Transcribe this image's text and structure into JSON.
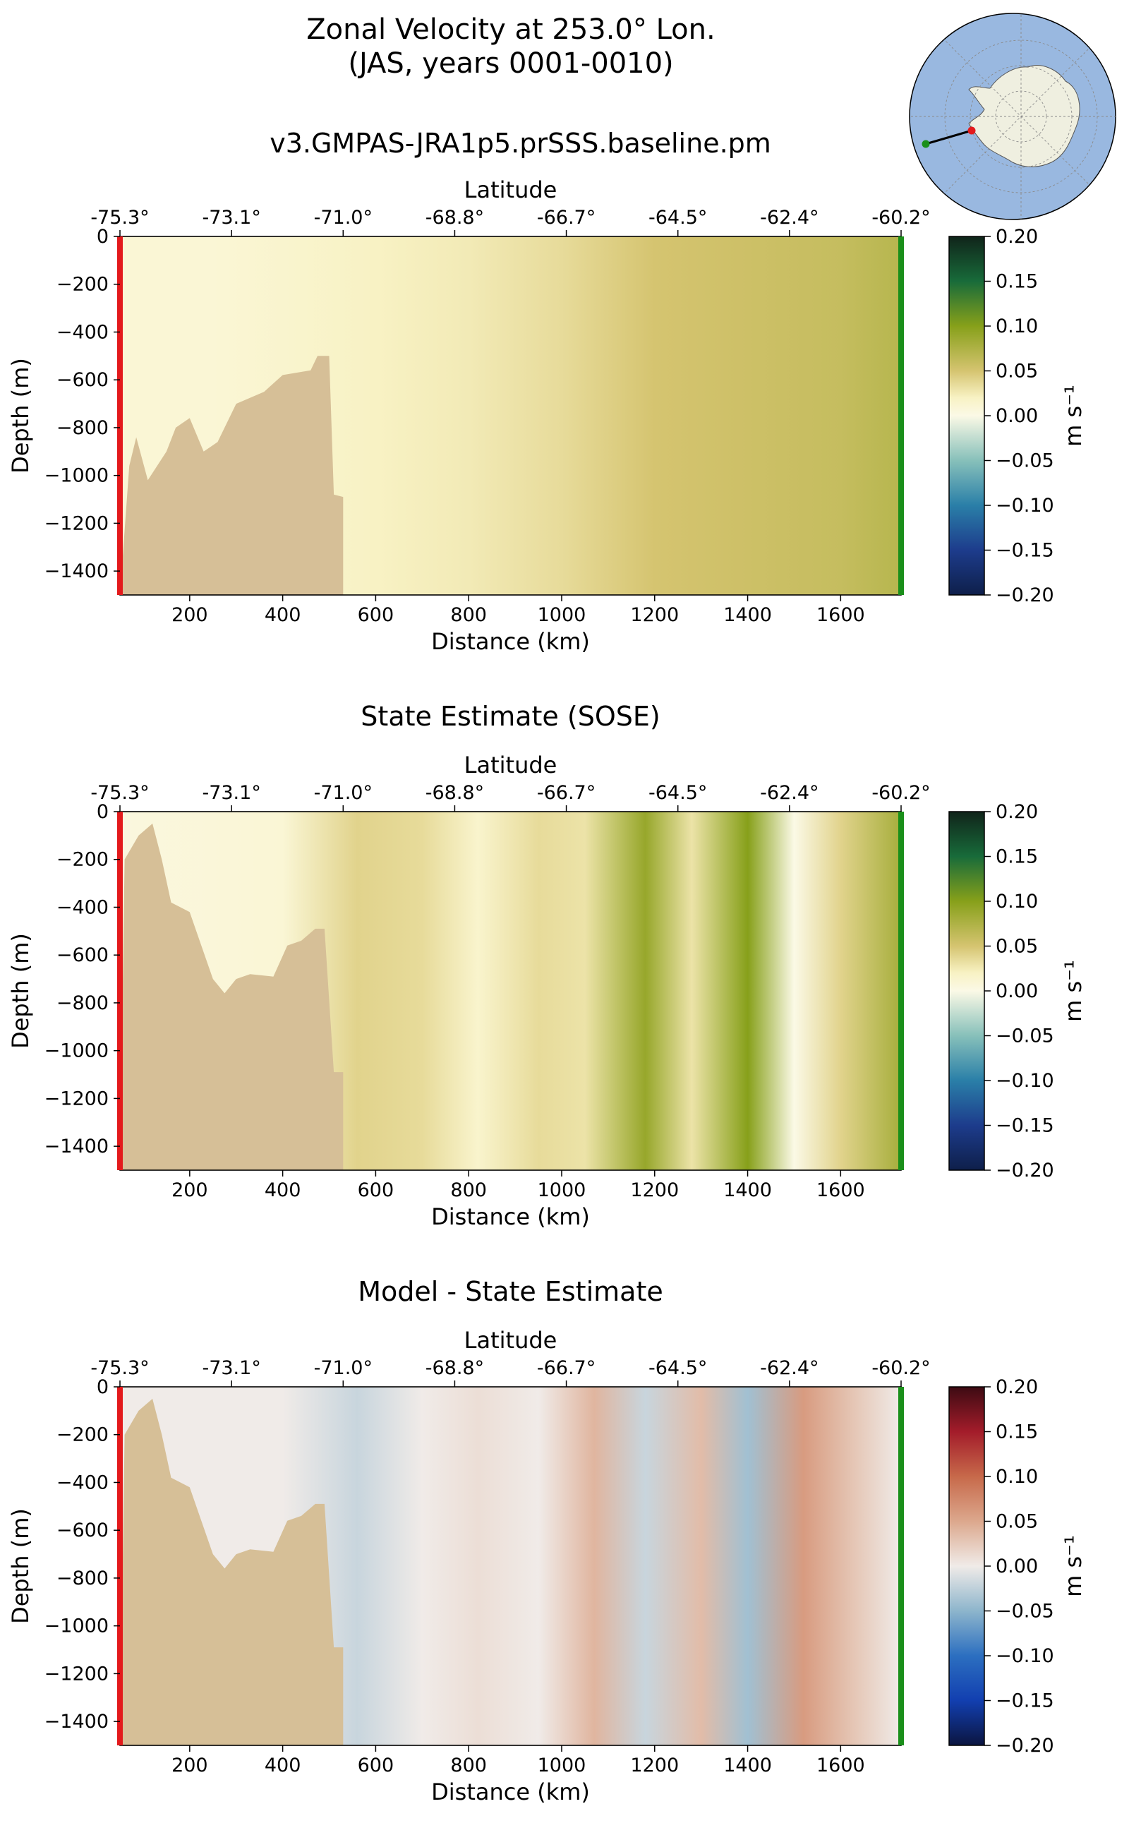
{
  "figure": {
    "title_line1": "Zonal Velocity at 253.0° Lon.",
    "title_line2": "(JAS, years 0001-0010)",
    "subtitle": "v3.GMPAS-JRA1p5.prSSS.baseline.pm"
  },
  "colors": {
    "land": "#d6bf97",
    "start_marker": "#e31a1c",
    "end_marker": "#1a8f1a",
    "map_ocean": "#99b8e0",
    "map_land": "#efefe0"
  },
  "chart_data": [
    {
      "type": "heatmap",
      "title": "",
      "xlabel": "Distance (km)",
      "ylabel": "Depth (m)",
      "top_axis_label": "Latitude",
      "top_ticks": [
        "-75.3°",
        "-73.1°",
        "-71.0°",
        "-68.8°",
        "-66.7°",
        "-64.5°",
        "-62.4°",
        "-60.2°"
      ],
      "xticks": [
        "200",
        "400",
        "600",
        "800",
        "1000",
        "1200",
        "1400",
        "1600"
      ],
      "yticks": [
        "0",
        "−200",
        "−400",
        "−600",
        "−800",
        "−1000",
        "−1200",
        "−1400"
      ],
      "xlim": [
        50,
        1730
      ],
      "ylim": [
        -1500,
        0
      ],
      "colorbar_label": "m s⁻¹",
      "colorbar_ticks": [
        "0.20",
        "0.15",
        "0.10",
        "0.05",
        "0.00",
        "−0.05",
        "−0.10",
        "−0.15",
        "−0.20"
      ],
      "colormap": "velocity",
      "vmin": -0.2,
      "vmax": 0.2,
      "column_values": [
        {
          "x": 50,
          "v": 0.01
        },
        {
          "x": 250,
          "v": 0.01
        },
        {
          "x": 420,
          "v": 0.015
        },
        {
          "x": 600,
          "v": 0.02
        },
        {
          "x": 800,
          "v": 0.025
        },
        {
          "x": 1000,
          "v": 0.035
        },
        {
          "x": 1200,
          "v": 0.05
        },
        {
          "x": 1400,
          "v": 0.055
        },
        {
          "x": 1600,
          "v": 0.06
        },
        {
          "x": 1730,
          "v": 0.07
        }
      ],
      "bathymetry": [
        {
          "x": 50,
          "depth": -1500
        },
        {
          "x": 70,
          "depth": -960
        },
        {
          "x": 85,
          "depth": -840
        },
        {
          "x": 110,
          "depth": -1020
        },
        {
          "x": 150,
          "depth": -900
        },
        {
          "x": 170,
          "depth": -800
        },
        {
          "x": 200,
          "depth": -760
        },
        {
          "x": 230,
          "depth": -900
        },
        {
          "x": 260,
          "depth": -860
        },
        {
          "x": 300,
          "depth": -700
        },
        {
          "x": 360,
          "depth": -650
        },
        {
          "x": 400,
          "depth": -580
        },
        {
          "x": 460,
          "depth": -560
        },
        {
          "x": 475,
          "depth": -500
        },
        {
          "x": 500,
          "depth": -500
        },
        {
          "x": 510,
          "depth": -1080
        },
        {
          "x": 530,
          "depth": -1090
        },
        {
          "x": 530,
          "depth": -1500
        }
      ]
    },
    {
      "type": "heatmap",
      "title": "State Estimate (SOSE)",
      "xlabel": "Distance (km)",
      "ylabel": "Depth (m)",
      "top_axis_label": "Latitude",
      "top_ticks": [
        "-75.3°",
        "-73.1°",
        "-71.0°",
        "-68.8°",
        "-66.7°",
        "-64.5°",
        "-62.4°",
        "-60.2°"
      ],
      "xticks": [
        "200",
        "400",
        "600",
        "800",
        "1000",
        "1200",
        "1400",
        "1600"
      ],
      "yticks": [
        "0",
        "−200",
        "−400",
        "−600",
        "−800",
        "−1000",
        "−1200",
        "−1400"
      ],
      "xlim": [
        50,
        1730
      ],
      "ylim": [
        -1500,
        0
      ],
      "colorbar_label": "m s⁻¹",
      "colorbar_ticks": [
        "0.20",
        "0.15",
        "0.10",
        "0.05",
        "0.00",
        "−0.05",
        "−0.10",
        "−0.15",
        "−0.20"
      ],
      "colormap": "velocity",
      "vmin": -0.2,
      "vmax": 0.2,
      "column_values": [
        {
          "x": 50,
          "v": 0.005
        },
        {
          "x": 400,
          "v": 0.01
        },
        {
          "x": 560,
          "v": 0.04
        },
        {
          "x": 700,
          "v": 0.035
        },
        {
          "x": 820,
          "v": 0.015
        },
        {
          "x": 950,
          "v": 0.035
        },
        {
          "x": 1050,
          "v": 0.03
        },
        {
          "x": 1180,
          "v": 0.09
        },
        {
          "x": 1280,
          "v": 0.03
        },
        {
          "x": 1400,
          "v": 0.1
        },
        {
          "x": 1500,
          "v": 0.0
        },
        {
          "x": 1600,
          "v": 0.04
        },
        {
          "x": 1730,
          "v": 0.08
        }
      ],
      "bathymetry": [
        {
          "x": 50,
          "depth": -1500
        },
        {
          "x": 60,
          "depth": -200
        },
        {
          "x": 90,
          "depth": -100
        },
        {
          "x": 120,
          "depth": -50
        },
        {
          "x": 140,
          "depth": -200
        },
        {
          "x": 160,
          "depth": -380
        },
        {
          "x": 200,
          "depth": -420
        },
        {
          "x": 225,
          "depth": -560
        },
        {
          "x": 250,
          "depth": -700
        },
        {
          "x": 275,
          "depth": -760
        },
        {
          "x": 300,
          "depth": -700
        },
        {
          "x": 330,
          "depth": -680
        },
        {
          "x": 380,
          "depth": -690
        },
        {
          "x": 410,
          "depth": -560
        },
        {
          "x": 440,
          "depth": -540
        },
        {
          "x": 470,
          "depth": -490
        },
        {
          "x": 490,
          "depth": -490
        },
        {
          "x": 510,
          "depth": -1090
        },
        {
          "x": 530,
          "depth": -1090
        },
        {
          "x": 530,
          "depth": -1500
        }
      ]
    },
    {
      "type": "heatmap",
      "title": "Model - State Estimate",
      "xlabel": "Distance (km)",
      "ylabel": "Depth (m)",
      "top_axis_label": "Latitude",
      "top_ticks": [
        "-75.3°",
        "-73.1°",
        "-71.0°",
        "-68.8°",
        "-66.7°",
        "-64.5°",
        "-62.4°",
        "-60.2°"
      ],
      "xticks": [
        "200",
        "400",
        "600",
        "800",
        "1000",
        "1200",
        "1400",
        "1600"
      ],
      "yticks": [
        "0",
        "−200",
        "−400",
        "−600",
        "−800",
        "−1000",
        "−1200",
        "−1400"
      ],
      "xlim": [
        50,
        1730
      ],
      "ylim": [
        -1500,
        0
      ],
      "colorbar_label": "m s⁻¹",
      "colorbar_ticks": [
        "0.20",
        "0.15",
        "0.10",
        "0.05",
        "0.00",
        "−0.05",
        "−0.10",
        "−0.15",
        "−0.20"
      ],
      "colormap": "difference",
      "vmin": -0.2,
      "vmax": 0.2,
      "column_values": [
        {
          "x": 50,
          "v": 0.0
        },
        {
          "x": 400,
          "v": 0.0
        },
        {
          "x": 560,
          "v": -0.02
        },
        {
          "x": 700,
          "v": 0.0
        },
        {
          "x": 820,
          "v": 0.01
        },
        {
          "x": 950,
          "v": 0.0
        },
        {
          "x": 1070,
          "v": 0.04
        },
        {
          "x": 1180,
          "v": -0.02
        },
        {
          "x": 1300,
          "v": 0.035
        },
        {
          "x": 1400,
          "v": -0.04
        },
        {
          "x": 1520,
          "v": 0.06
        },
        {
          "x": 1620,
          "v": 0.03
        },
        {
          "x": 1730,
          "v": 0.0
        }
      ],
      "bathymetry": [
        {
          "x": 50,
          "depth": -1500
        },
        {
          "x": 60,
          "depth": -200
        },
        {
          "x": 90,
          "depth": -100
        },
        {
          "x": 120,
          "depth": -50
        },
        {
          "x": 140,
          "depth": -200
        },
        {
          "x": 160,
          "depth": -380
        },
        {
          "x": 200,
          "depth": -420
        },
        {
          "x": 225,
          "depth": -560
        },
        {
          "x": 250,
          "depth": -700
        },
        {
          "x": 275,
          "depth": -760
        },
        {
          "x": 300,
          "depth": -700
        },
        {
          "x": 330,
          "depth": -680
        },
        {
          "x": 380,
          "depth": -690
        },
        {
          "x": 410,
          "depth": -560
        },
        {
          "x": 440,
          "depth": -540
        },
        {
          "x": 470,
          "depth": -490
        },
        {
          "x": 490,
          "depth": -490
        },
        {
          "x": 510,
          "depth": -1090
        },
        {
          "x": 530,
          "depth": -1090
        },
        {
          "x": 530,
          "depth": -1500
        }
      ]
    }
  ]
}
